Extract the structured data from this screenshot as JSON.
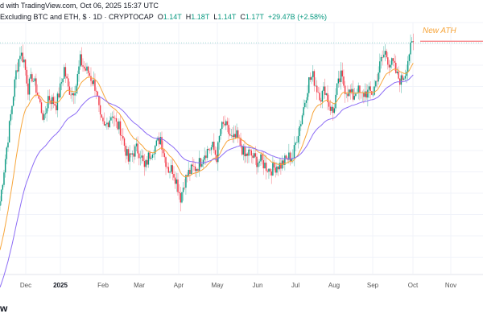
{
  "header": {
    "published": "d with TradingView.com, Oct 06, 2025 15:37 UTC",
    "symbol": "Excluding BTC and ETH, $ · 1D · CRYPTOCAP",
    "o_label": "O",
    "o": "1.14T",
    "h_label": "H",
    "h": "1.18T",
    "l_label": "L",
    "l": "1.14T",
    "c_label": "C",
    "c": "1.17T",
    "change": "+29.47B (+2.58%)"
  },
  "logo_text": "w",
  "colors": {
    "up": "#089981",
    "down": "#f23645",
    "ma_fast": "#f7a53a",
    "ma_slow": "#8c6cf5",
    "ath_line": "#f77c80"
  },
  "chart_data": {
    "type": "candlestick",
    "title": "Crypto market cap excluding BTC and ETH, 1D",
    "x_tick_labels": [
      "Dec",
      "2025",
      "Feb",
      "Mar",
      "Apr",
      "May",
      "Jun",
      "Jul",
      "Aug",
      "Sep",
      "Oct",
      "Nov"
    ],
    "annotation": "New ATH",
    "ath_value": 1.17,
    "ylim": [
      0.67,
      1.26
    ],
    "y_unit": "T USD",
    "close_keyframes": [
      0.814,
      0.886,
      0.958,
      1.03,
      1.102,
      1.147,
      1.129,
      1.066,
      1.093,
      1.066,
      1.03,
      0.994,
      1.048,
      1.039,
      1.03,
      1.066,
      1.111,
      1.066,
      1.057,
      1.075,
      1.129,
      1.111,
      1.102,
      1.084,
      1.066,
      0.994,
      0.976,
      0.994,
      1.012,
      0.985,
      0.976,
      0.94,
      0.904,
      0.922,
      0.931,
      0.922,
      0.886,
      0.913,
      0.931,
      0.94,
      0.958,
      0.913,
      0.886,
      0.886,
      0.859,
      0.823,
      0.859,
      0.877,
      0.886,
      0.89,
      0.904,
      0.922,
      0.931,
      0.935,
      0.913,
      0.976,
      0.985,
      0.967,
      0.949,
      0.958,
      0.94,
      0.913,
      0.922,
      0.913,
      0.904,
      0.904,
      0.895,
      0.886,
      0.886,
      0.895,
      0.895,
      0.904,
      0.913,
      0.913,
      0.958,
      0.994,
      1.039,
      1.084,
      1.093,
      1.066,
      1.048,
      1.066,
      1.03,
      1.012,
      1.066,
      1.093,
      1.066,
      1.057,
      1.048,
      1.066,
      1.048,
      1.057,
      1.057,
      1.057,
      1.093,
      1.129,
      1.147,
      1.124,
      1.12,
      1.093,
      1.084,
      1.102,
      1.147,
      1.17
    ],
    "ma_periods": [
      20,
      50
    ]
  }
}
